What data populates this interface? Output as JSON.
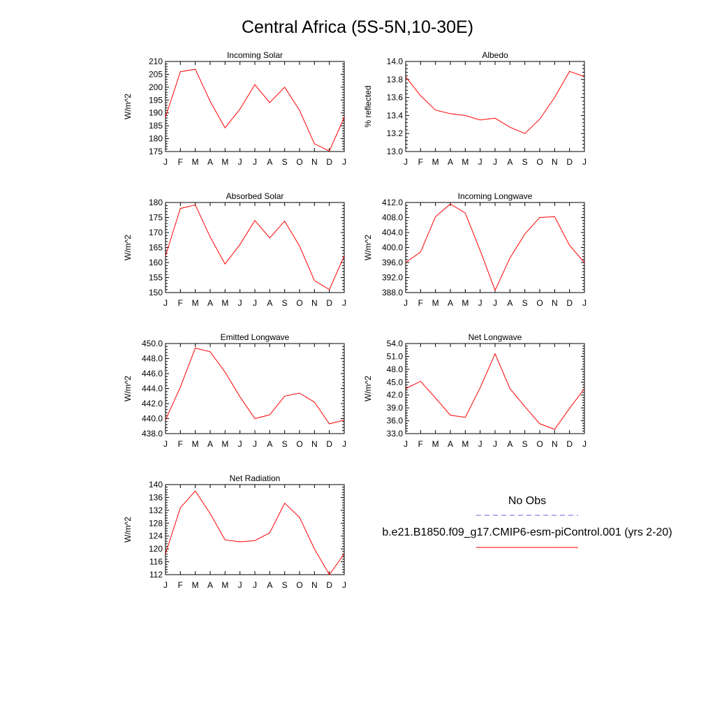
{
  "title": "Central Africa (5S-5N,10-30E)",
  "months": [
    "J",
    "F",
    "M",
    "A",
    "M",
    "J",
    "J",
    "A",
    "S",
    "O",
    "N",
    "D",
    "J"
  ],
  "line_color": "#ff0000",
  "obs_color": "#6666dd",
  "legend": {
    "obs_label": "No Obs",
    "model_label": "b.e21.B1850.f09_g17.CMIP6-esm-piControl.001 (yrs 2-20)"
  },
  "chart_data": [
    {
      "type": "line",
      "title": "Incoming Solar",
      "ylabel": "W/m^2",
      "ylim": [
        175,
        210
      ],
      "yticks": [
        175,
        180,
        185,
        190,
        195,
        200,
        205,
        210
      ],
      "ytick_labels": [
        "175",
        "180",
        "185",
        "190",
        "195",
        "200",
        "205",
        "210"
      ],
      "values": [
        188.3,
        206.0,
        207.0,
        194.5,
        184.2,
        191.5,
        201.0,
        194.0,
        200.0,
        191.0,
        178.0,
        175.2,
        188.3
      ]
    },
    {
      "type": "line",
      "title": "Albedo",
      "ylabel": "% reflected",
      "ylim": [
        13.0,
        14.0
      ],
      "yticks": [
        13.0,
        13.2,
        13.4,
        13.6,
        13.8,
        14.0
      ],
      "ytick_labels": [
        "13.0",
        "13.2",
        "13.4",
        "13.6",
        "13.8",
        "14.0"
      ],
      "values": [
        13.83,
        13.62,
        13.46,
        13.42,
        13.4,
        13.35,
        13.37,
        13.27,
        13.2,
        13.36,
        13.6,
        13.89,
        13.83
      ]
    },
    {
      "type": "line",
      "title": "Absorbed Solar",
      "ylabel": "W/m^2",
      "ylim": [
        150,
        180
      ],
      "yticks": [
        150,
        155,
        160,
        165,
        170,
        175,
        180
      ],
      "ytick_labels": [
        "150",
        "155",
        "160",
        "165",
        "170",
        "175",
        "180"
      ],
      "values": [
        162.2,
        178.0,
        179.2,
        168.5,
        159.5,
        166.0,
        174.0,
        168.2,
        173.8,
        165.5,
        154.0,
        151.0,
        162.2
      ]
    },
    {
      "type": "line",
      "title": "Incoming Longwave",
      "ylabel": "W/m^2",
      "ylim": [
        388.0,
        412.0
      ],
      "yticks": [
        388,
        392,
        396,
        400,
        404,
        408,
        412
      ],
      "ytick_labels": [
        "388.0",
        "392.0",
        "396.0",
        "400.0",
        "404.0",
        "408.0",
        "412.0"
      ],
      "values": [
        396.0,
        398.8,
        408.2,
        411.6,
        409.2,
        399.2,
        388.6,
        397.2,
        403.6,
        408.0,
        408.2,
        400.6,
        396.0
      ]
    },
    {
      "type": "line",
      "title": "Emitted Longwave",
      "ylabel": "W/m^2",
      "ylim": [
        438.0,
        450.0
      ],
      "yticks": [
        438,
        440,
        442,
        444,
        446,
        448,
        450
      ],
      "ytick_labels": [
        "438.0",
        "440.0",
        "442.0",
        "444.0",
        "446.0",
        "448.0",
        "450.0"
      ],
      "values": [
        439.8,
        444.2,
        449.4,
        448.9,
        446.2,
        442.9,
        440.0,
        440.5,
        443.0,
        443.4,
        442.2,
        439.3,
        439.8
      ]
    },
    {
      "type": "line",
      "title": "Net Longwave",
      "ylabel": "W/m^2",
      "ylim": [
        33.0,
        54.0
      ],
      "yticks": [
        33,
        36,
        39,
        42,
        45,
        48,
        51,
        54
      ],
      "ytick_labels": [
        "33.0",
        "36.0",
        "39.0",
        "42.0",
        "45.0",
        "48.0",
        "51.0",
        "54.0"
      ],
      "values": [
        43.5,
        45.2,
        41.3,
        37.3,
        36.8,
        43.7,
        51.6,
        43.5,
        39.3,
        35.3,
        34.0,
        38.9,
        43.5
      ]
    },
    {
      "type": "line",
      "title": "Net Radiation",
      "ylabel": "W/m^2",
      "ylim": [
        112,
        140
      ],
      "yticks": [
        112,
        116,
        120,
        124,
        128,
        132,
        136,
        140
      ],
      "ytick_labels": [
        "112",
        "116",
        "120",
        "124",
        "128",
        "132",
        "136",
        "140"
      ],
      "values": [
        118.5,
        132.8,
        138.0,
        131.0,
        122.8,
        122.2,
        122.6,
        125.0,
        134.2,
        129.8,
        120.0,
        112.0,
        118.5
      ]
    }
  ]
}
